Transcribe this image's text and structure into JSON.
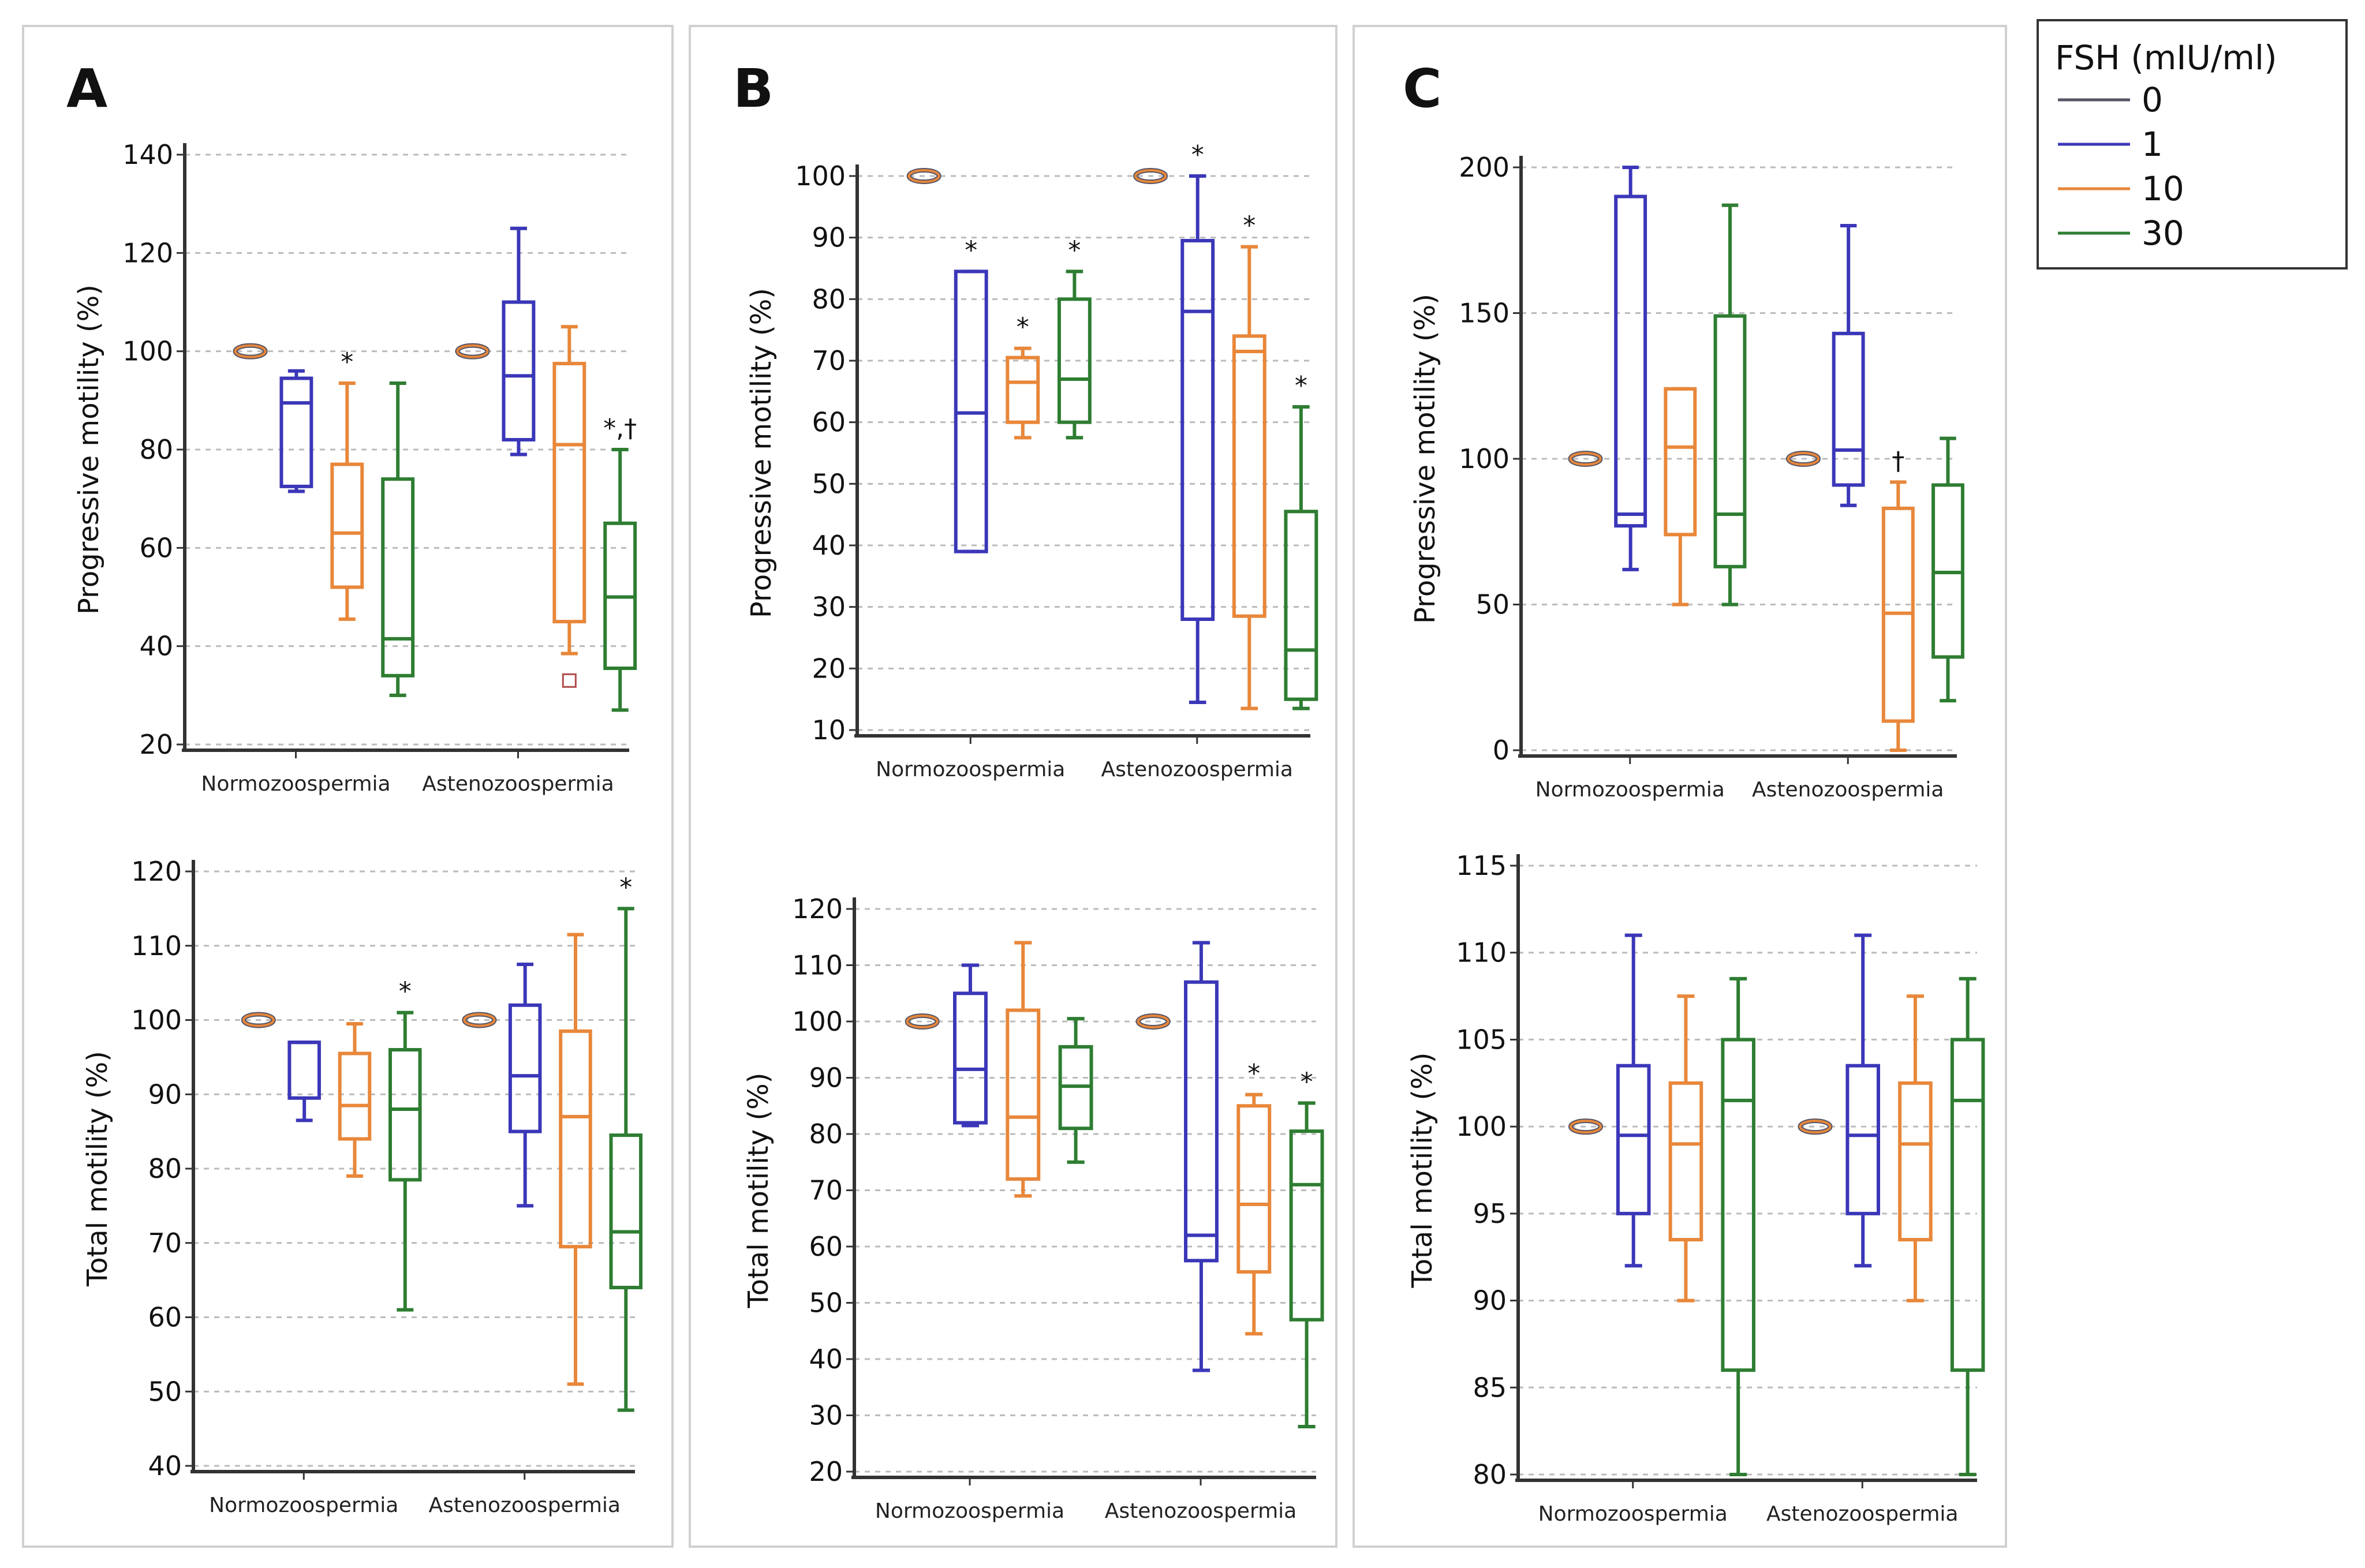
{
  "legend": {
    "title": "FSH (mIU/ml)",
    "items": [
      {
        "label": "0",
        "color": "#555566"
      },
      {
        "label": "1",
        "color": "#3b37b8"
      },
      {
        "label": "10",
        "color": "#e8873a"
      },
      {
        "label": "30",
        "color": "#2e7d32"
      }
    ]
  },
  "panels": [
    {
      "letter": "A"
    },
    {
      "letter": "B"
    },
    {
      "letter": "C"
    }
  ],
  "chart_data": [
    {
      "panel": "A",
      "type": "box",
      "title": "",
      "ylabel": "Progressive motility (%)",
      "ylim": [
        20,
        140
      ],
      "yticks": [
        20,
        40,
        60,
        80,
        100,
        120,
        140
      ],
      "categories": [
        "Normozoospermia",
        "Astenozoospermia"
      ],
      "series": [
        {
          "name": "0",
          "ref": [
            100,
            100
          ]
        },
        {
          "name": "1",
          "boxes": [
            {
              "min": 71.5,
              "q1": 72.5,
              "median": 89.5,
              "q3": 94.5,
              "max": 96
            },
            {
              "min": 79,
              "q1": 82,
              "median": 95,
              "q3": 110,
              "max": 125
            }
          ]
        },
        {
          "name": "10",
          "boxes": [
            {
              "min": 45.5,
              "q1": 52,
              "median": 63,
              "q3": 77,
              "max": 93.5,
              "mark": "*"
            },
            {
              "min": 38.5,
              "q1": 45,
              "median": 81,
              "q3": 97.5,
              "max": 105,
              "outliers": [
                33
              ]
            }
          ]
        },
        {
          "name": "30",
          "boxes": [
            {
              "min": 30,
              "q1": 34,
              "median": 41.5,
              "q3": 74,
              "max": 93.5
            },
            {
              "min": 27,
              "q1": 35.5,
              "median": 50,
              "q3": 65,
              "max": 80,
              "mark": "*,†"
            }
          ]
        }
      ]
    },
    {
      "panel": "A",
      "type": "box",
      "title": "",
      "ylabel": "Total motility (%)",
      "ylim": [
        40,
        120
      ],
      "yticks": [
        40,
        50,
        60,
        70,
        80,
        90,
        100,
        110,
        120
      ],
      "categories": [
        "Normozoospermia",
        "Astenozoospermia"
      ],
      "series": [
        {
          "name": "0",
          "ref": [
            100,
            100
          ]
        },
        {
          "name": "1",
          "boxes": [
            {
              "min": 86.5,
              "q1": 89.5,
              "median": 97,
              "q3": 97,
              "max": 97
            },
            {
              "min": 75,
              "q1": 85,
              "median": 92.5,
              "q3": 102,
              "max": 107.5
            }
          ]
        },
        {
          "name": "10",
          "boxes": [
            {
              "min": 79,
              "q1": 84,
              "median": 88.5,
              "q3": 95.5,
              "max": 99.5
            },
            {
              "min": 51,
              "q1": 69.5,
              "median": 87,
              "q3": 98.5,
              "max": 111.5
            }
          ]
        },
        {
          "name": "30",
          "boxes": [
            {
              "min": 61,
              "q1": 78.5,
              "median": 88,
              "q3": 96,
              "max": 101,
              "mark": "*"
            },
            {
              "min": 47.5,
              "q1": 64,
              "median": 71.5,
              "q3": 84.5,
              "max": 115,
              "mark": "*"
            }
          ]
        }
      ]
    },
    {
      "panel": "B",
      "type": "box",
      "title": "",
      "ylabel": "Progressive motility (%)",
      "ylim": [
        10,
        100
      ],
      "yticks": [
        10,
        20,
        30,
        40,
        50,
        60,
        70,
        80,
        90,
        100
      ],
      "categories": [
        "Normozoospermia",
        "Astenozoospermia"
      ],
      "series": [
        {
          "name": "0",
          "ref": [
            100,
            100
          ]
        },
        {
          "name": "1",
          "boxes": [
            {
              "min": 39,
              "q1": 39,
              "median": 61.5,
              "q3": 84.5,
              "max": 84.5,
              "mark": "*"
            },
            {
              "min": 14.5,
              "q1": 28,
              "median": 78,
              "q3": 89.5,
              "max": 100,
              "mark": "*"
            }
          ]
        },
        {
          "name": "10",
          "boxes": [
            {
              "min": 57.5,
              "q1": 60,
              "median": 66.5,
              "q3": 70.5,
              "max": 72,
              "mark": "*"
            },
            {
              "min": 13.5,
              "q1": 28.5,
              "median": 71.5,
              "q3": 74,
              "max": 88.5,
              "mark": "*"
            }
          ]
        },
        {
          "name": "30",
          "boxes": [
            {
              "min": 57.5,
              "q1": 60,
              "median": 67,
              "q3": 80,
              "max": 84.5,
              "mark": "*"
            },
            {
              "min": 13.5,
              "q1": 15,
              "median": 23,
              "q3": 45.5,
              "max": 62.5,
              "mark": "*"
            }
          ]
        }
      ]
    },
    {
      "panel": "B",
      "type": "box",
      "title": "",
      "ylabel": "Total motility (%)",
      "ylim": [
        20,
        120
      ],
      "yticks": [
        20,
        30,
        40,
        50,
        60,
        70,
        80,
        90,
        100,
        110,
        120
      ],
      "categories": [
        "Normozoospermia",
        "Astenozoospermia"
      ],
      "series": [
        {
          "name": "0",
          "ref": [
            100,
            100
          ]
        },
        {
          "name": "1",
          "boxes": [
            {
              "min": 81.5,
              "q1": 82,
              "median": 91.5,
              "q3": 105,
              "max": 110
            },
            {
              "min": 38,
              "q1": 57.5,
              "median": 62,
              "q3": 107,
              "max": 114
            }
          ]
        },
        {
          "name": "10",
          "boxes": [
            {
              "min": 69,
              "q1": 72,
              "median": 83,
              "q3": 102,
              "max": 114
            },
            {
              "min": 44.5,
              "q1": 55.5,
              "median": 67.5,
              "q3": 85,
              "max": 87,
              "mark": "*"
            }
          ]
        },
        {
          "name": "30",
          "boxes": [
            {
              "min": 75,
              "q1": 81,
              "median": 88.5,
              "q3": 95.5,
              "max": 100.5
            },
            {
              "min": 28,
              "q1": 47,
              "median": 71,
              "q3": 80.5,
              "max": 85.5,
              "mark": "*"
            }
          ]
        }
      ]
    },
    {
      "panel": "C",
      "type": "box",
      "title": "",
      "ylabel": "Progressive motility (%)",
      "ylim": [
        0,
        200
      ],
      "yticks": [
        0,
        50,
        100,
        150,
        200
      ],
      "categories": [
        "Normozoospermia",
        "Astenozoospermia"
      ],
      "series": [
        {
          "name": "0",
          "ref": [
            100,
            100
          ]
        },
        {
          "name": "1",
          "boxes": [
            {
              "min": 62,
              "q1": 77,
              "median": 81,
              "q3": 190,
              "max": 200
            },
            {
              "min": 84,
              "q1": 91,
              "median": 103,
              "q3": 143,
              "max": 180
            }
          ]
        },
        {
          "name": "10",
          "boxes": [
            {
              "min": 50,
              "q1": 74,
              "median": 104,
              "q3": 124,
              "max": 124
            },
            {
              "min": 0,
              "q1": 10,
              "median": 47,
              "q3": 83,
              "max": 92,
              "mark": "†"
            }
          ]
        },
        {
          "name": "30",
          "boxes": [
            {
              "min": 50,
              "q1": 63,
              "median": 81,
              "q3": 149,
              "max": 187
            },
            {
              "min": 17,
              "q1": 32,
              "median": 61,
              "q3": 91,
              "max": 107
            }
          ]
        }
      ]
    },
    {
      "panel": "C",
      "type": "box",
      "title": "",
      "ylabel": "Total motility (%)",
      "ylim": [
        80,
        115
      ],
      "yticks": [
        80,
        85,
        90,
        95,
        100,
        105,
        110,
        115
      ],
      "categories": [
        "Normozoospermia",
        "Astenozoospermia"
      ],
      "series": [
        {
          "name": "0",
          "ref": [
            100,
            100
          ]
        },
        {
          "name": "1",
          "boxes": [
            {
              "min": 92,
              "q1": 95,
              "median": 99.5,
              "q3": 103.5,
              "max": 111
            },
            {
              "min": 92,
              "q1": 95,
              "median": 99.5,
              "q3": 103.5,
              "max": 111
            }
          ]
        },
        {
          "name": "10",
          "boxes": [
            {
              "min": 90,
              "q1": 93.5,
              "median": 99,
              "q3": 102.5,
              "max": 107.5
            },
            {
              "min": 90,
              "q1": 93.5,
              "median": 99,
              "q3": 102.5,
              "max": 107.5
            }
          ]
        },
        {
          "name": "30",
          "boxes": [
            {
              "min": 80,
              "q1": 86,
              "median": 101.5,
              "q3": 105,
              "max": 108.5
            },
            {
              "min": 80,
              "q1": 86,
              "median": 101.5,
              "q3": 105,
              "max": 108.5
            }
          ]
        }
      ]
    }
  ]
}
